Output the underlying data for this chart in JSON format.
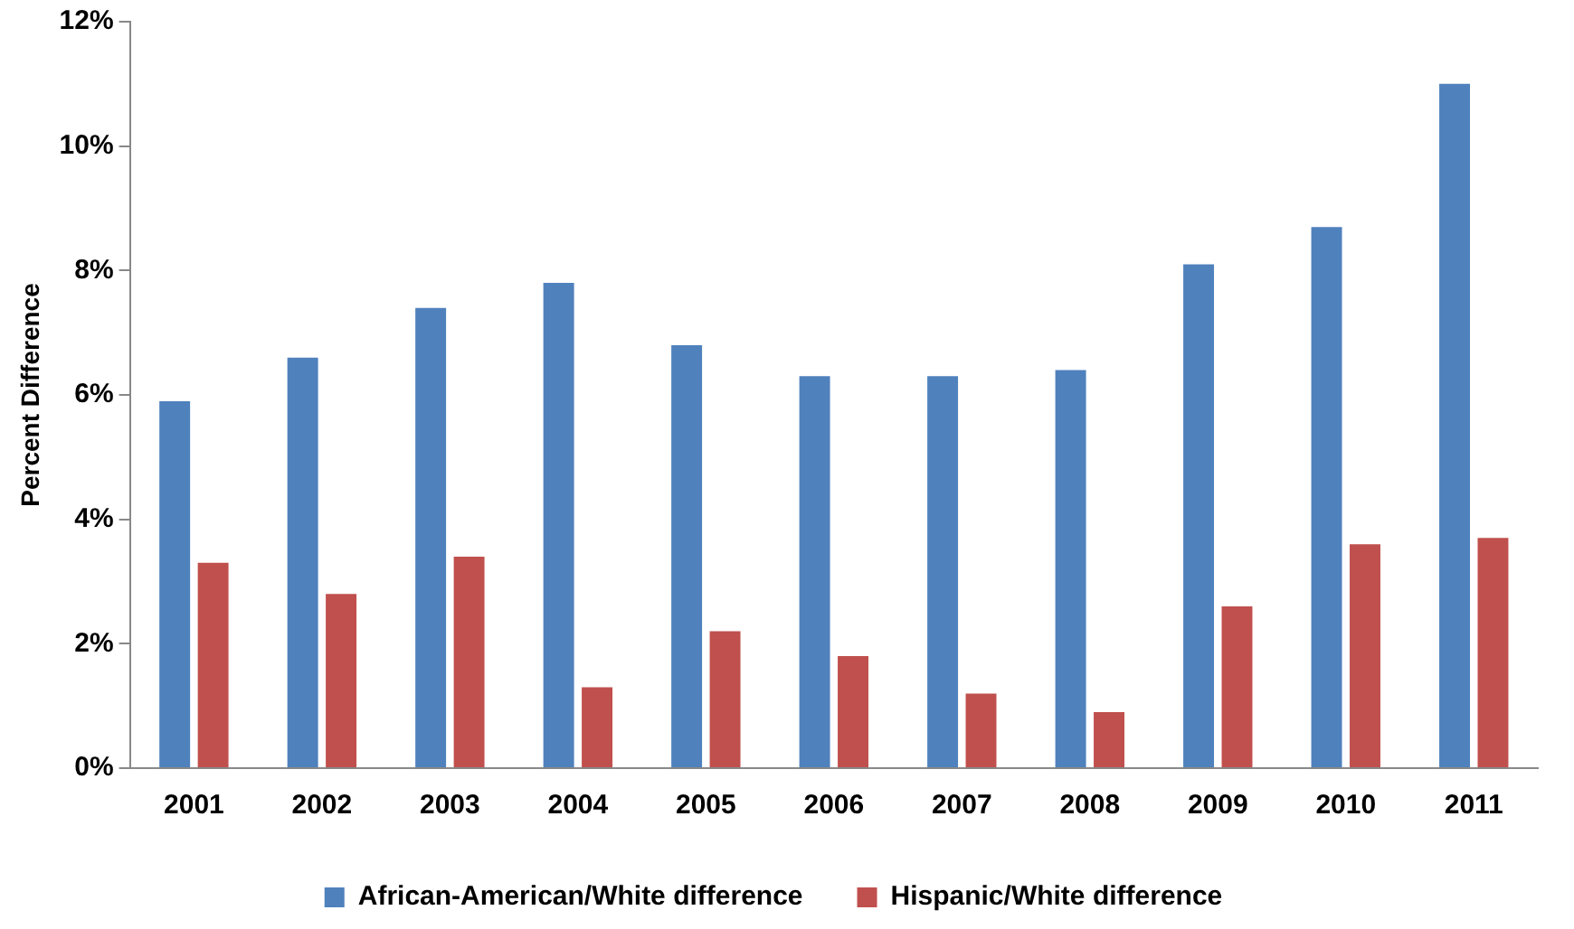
{
  "chart_data": {
    "type": "bar",
    "ylabel": "Percent Difference",
    "categories": [
      "2001",
      "2002",
      "2003",
      "2004",
      "2005",
      "2006",
      "2007",
      "2008",
      "2009",
      "2010",
      "2011"
    ],
    "series": [
      {
        "name": "African-American/White difference",
        "color": "#4f81bd",
        "values": [
          5.9,
          6.6,
          7.4,
          7.8,
          6.8,
          6.3,
          6.3,
          6.4,
          8.1,
          8.7,
          11.0
        ]
      },
      {
        "name": "Hispanic/White difference",
        "color": "#c0504d",
        "values": [
          3.3,
          2.8,
          3.4,
          1.3,
          2.2,
          1.8,
          1.2,
          0.9,
          2.6,
          3.6,
          3.7
        ]
      }
    ],
    "ylim": [
      0,
      12
    ],
    "yticks": [
      {
        "value": 0,
        "label": "0%"
      },
      {
        "value": 2,
        "label": "2%"
      },
      {
        "value": 4,
        "label": "4%"
      },
      {
        "value": 6,
        "label": "6%"
      },
      {
        "value": 8,
        "label": "8%"
      },
      {
        "value": 10,
        "label": "10%"
      },
      {
        "value": 12,
        "label": "12%"
      }
    ],
    "grid": false,
    "legend": "bottom"
  }
}
